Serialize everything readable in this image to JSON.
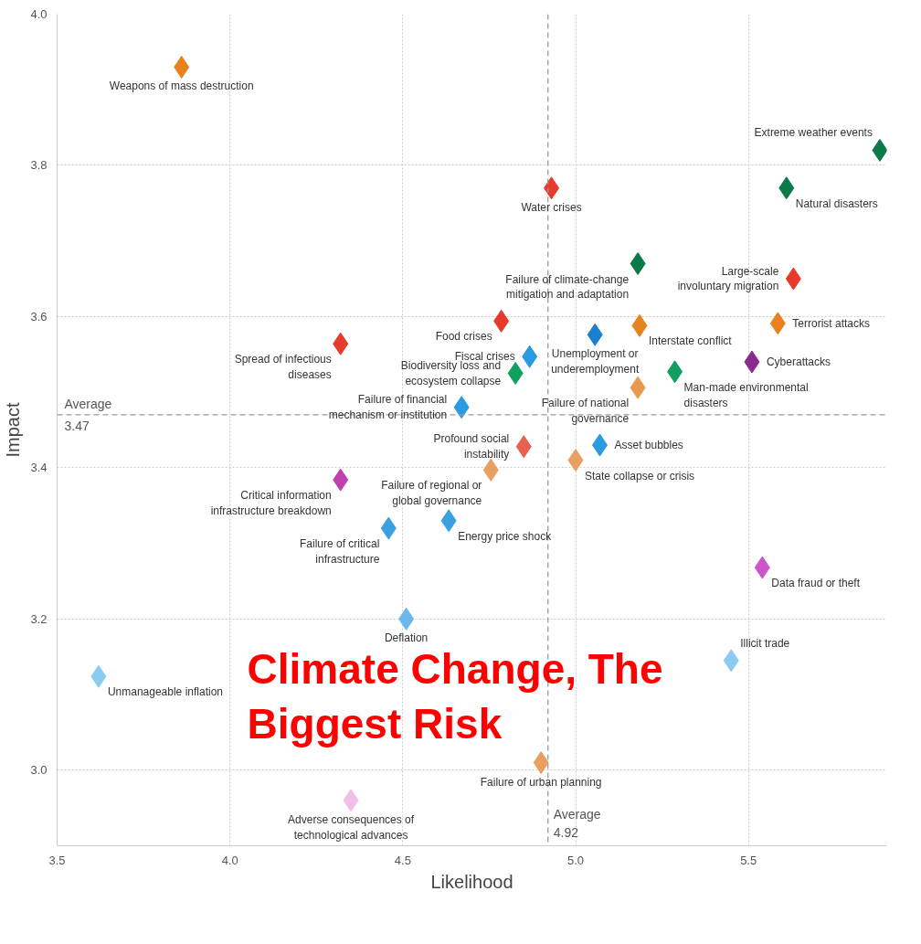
{
  "chart_data": {
    "type": "scatter",
    "title": "Climate Change, The Biggest Risk",
    "xlabel": "Likelihood",
    "ylabel": "Impact",
    "xlim": [
      3.5,
      5.9
    ],
    "ylim": [
      2.9,
      4.0
    ],
    "xticks": [
      {
        "value": 3.5,
        "label": "3.5"
      },
      {
        "value": 4.0,
        "label": "4.0"
      },
      {
        "value": 4.5,
        "label": "4.5"
      },
      {
        "value": 5.0,
        "label": "5.0"
      },
      {
        "value": 5.5,
        "label": "5.5"
      }
    ],
    "yticks": [
      {
        "value": 3.0,
        "label": "3.0"
      },
      {
        "value": 3.2,
        "label": "3.2"
      },
      {
        "value": 3.4,
        "label": "3.4"
      },
      {
        "value": 3.6,
        "label": "3.6"
      },
      {
        "value": 3.8,
        "label": "3.8"
      },
      {
        "value": 4.0,
        "label": "4.0"
      }
    ],
    "grid": true,
    "legend": false,
    "marker": "diamond",
    "ref_lines": [
      {
        "axis": "x",
        "value": 4.92,
        "label": "Average\n4.92"
      },
      {
        "axis": "y",
        "value": 3.47,
        "label": "Average\n3.47"
      }
    ],
    "x": [
      3.86,
      5.88,
      4.93,
      5.61,
      5.18,
      5.63,
      4.785,
      4.32,
      5.185,
      5.585,
      5.056,
      4.867,
      5.51,
      4.826,
      5.287,
      5.18,
      4.67,
      4.85,
      5.07,
      4.755,
      5.0,
      4.32,
      4.459,
      4.633,
      5.54,
      4.51,
      5.45,
      3.62,
      4.35,
      4.9
    ],
    "values": [
      3.93,
      3.82,
      3.77,
      3.77,
      3.67,
      3.65,
      3.594,
      3.564,
      3.588,
      3.591,
      3.576,
      3.547,
      3.54,
      3.525,
      3.527,
      3.506,
      3.48,
      3.428,
      3.43,
      3.397,
      3.41,
      3.384,
      3.32,
      3.33,
      3.268,
      3.2,
      3.145,
      3.124,
      2.96,
      3.01
    ],
    "colors": [
      "#e8821e",
      "#0a7a48",
      "#e63a2a",
      "#0a7a48",
      "#0a7a48",
      "#e63a2a",
      "#e63a2a",
      "#e63a2a",
      "#e8821e",
      "#e8821e",
      "#1a7fd0",
      "#2a9be0",
      "#8b2a8e",
      "#12a060",
      "#12a060",
      "#e89a50",
      "#2a9be0",
      "#e86050",
      "#2a9be0",
      "#e8a060",
      "#e8a060",
      "#c040b0",
      "#3aa0e0",
      "#3aa0e0",
      "#cc55cc",
      "#6ab8ec",
      "#8ccbf0",
      "#8ccbf0",
      "#f0c0e8",
      "#e8a060"
    ],
    "value_labels": [
      "Weapons of mass destruction",
      "Extreme weather events",
      "Water crises",
      "Natural disasters",
      "Failure of climate-change\nmitigation and adaptation",
      "Large-scale\ninvoluntary migration",
      "Food crises",
      "Spread of infectious\ndiseases",
      "Interstate conflict",
      "Terrorist attacks",
      "Unemployment or\nunderemployment",
      "Fiscal crises",
      "Cyberattacks",
      "Biodiversity loss and\necosystem collapse",
      "Man-made environmental\ndisasters",
      "Failure of national\ngovernance",
      "Failure of financial\nmechanism or institution",
      "Profound social\ninstability",
      "Asset bubbles",
      "Failure of regional or\nglobal governance",
      "State collapse or crisis",
      "Critical information\ninfrastructure breakdown",
      "Failure of critical\ninfrastructure",
      "Energy price shock",
      "Data fraud or theft",
      "Deflation",
      "Illicit trade",
      "Unmanageable inflation",
      "Adverse consequences of\ntechnological advances",
      "Failure of urban planning"
    ]
  }
}
